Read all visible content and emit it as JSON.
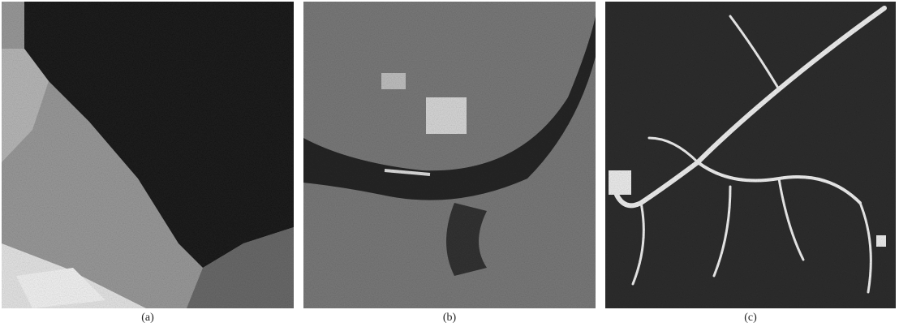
{
  "figure": {
    "panels": [
      {
        "caption": "(a)"
      },
      {
        "caption": "(b)"
      },
      {
        "caption": "(c)"
      }
    ]
  }
}
